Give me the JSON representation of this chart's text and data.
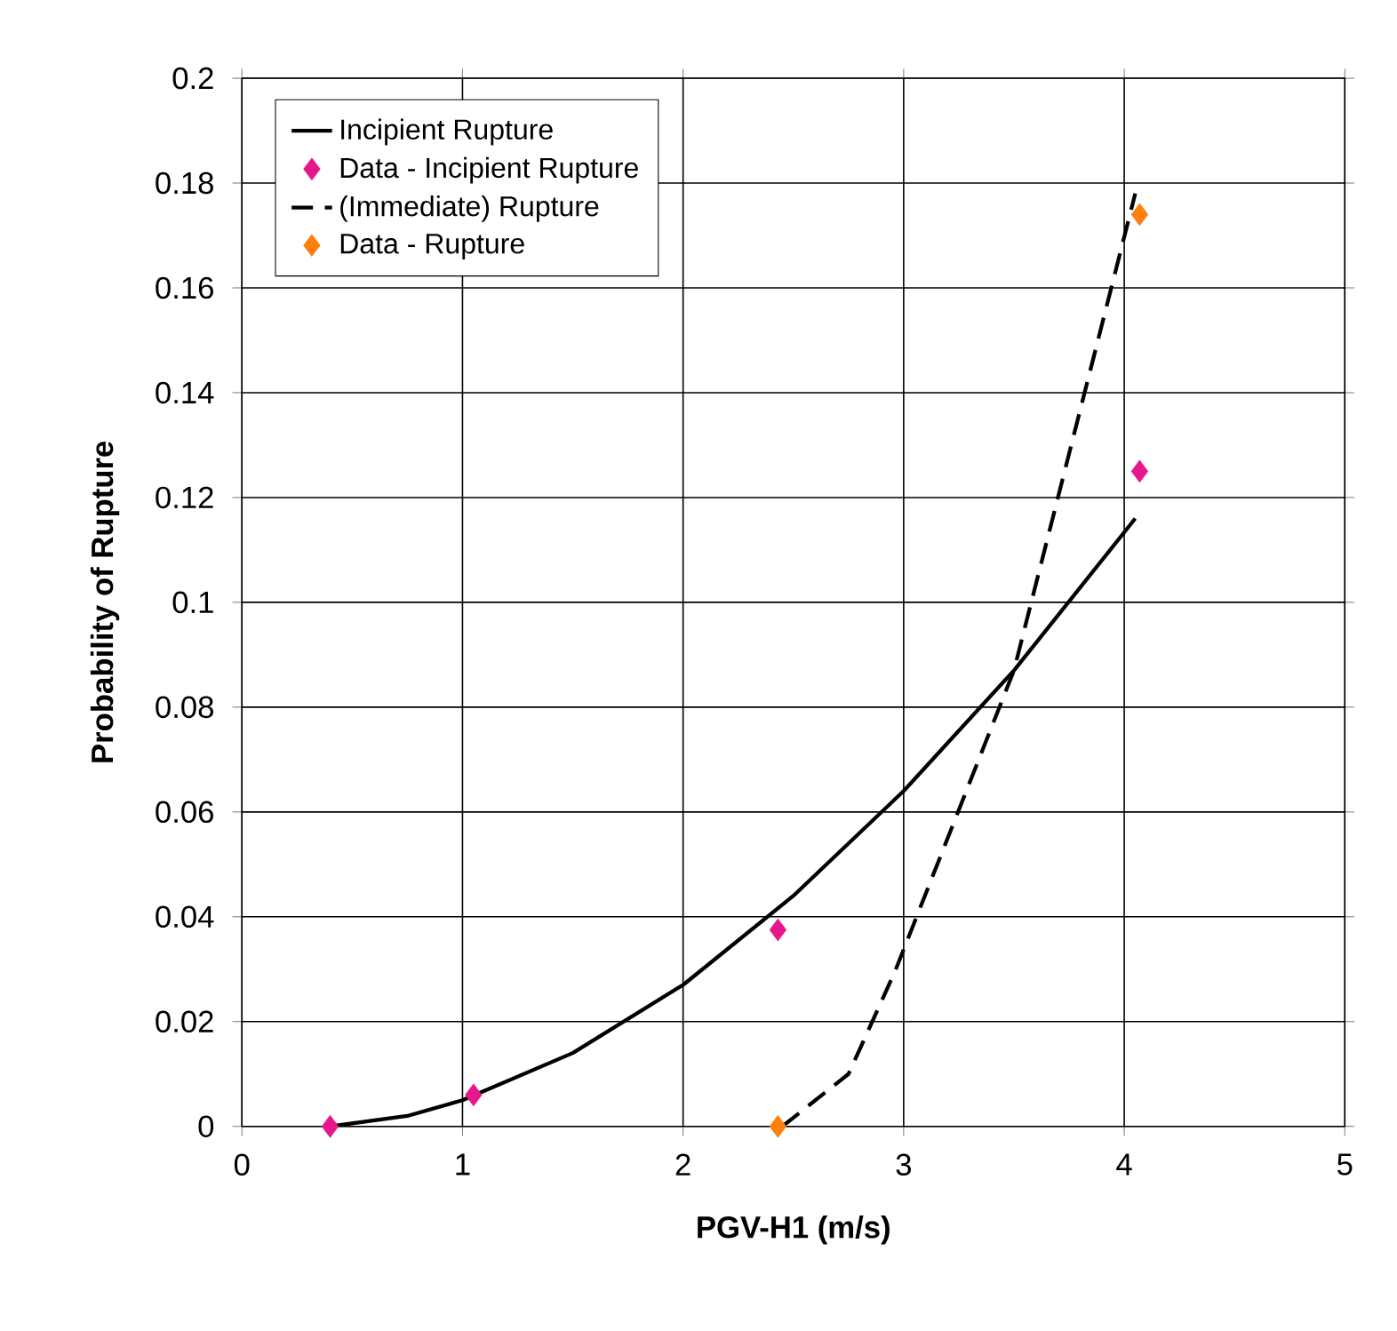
{
  "chart_data": {
    "type": "line",
    "xlabel": "PGV-H1 (m/s)",
    "ylabel": "Probability of Rupture",
    "xlim": [
      0,
      5
    ],
    "xticks": [
      0,
      1,
      2,
      3,
      4,
      5
    ],
    "ylim": [
      0,
      0.2
    ],
    "yticks": [
      0,
      0.02,
      0.04,
      0.06,
      0.08,
      0.1,
      0.12,
      0.14,
      0.16,
      0.18,
      0.2
    ],
    "grid": true,
    "legend": "top left",
    "series": [
      {
        "name": "Incipient Rupture",
        "color": "#000000",
        "line_style": "solid",
        "marker": "none",
        "x": [
          0.4,
          0.75,
          1.0,
          1.5,
          2.0,
          2.5,
          3.0,
          3.5,
          4.05
        ],
        "values": [
          0,
          0.002,
          0.005,
          0.014,
          0.027,
          0.044,
          0.064,
          0.087,
          0.116
        ]
      },
      {
        "name": "Data - Incipient Rupture",
        "type": "scatter",
        "color": "#e8168c",
        "marker": "diamond",
        "x": [
          0.4,
          1.05,
          2.43,
          4.07
        ],
        "values": [
          0,
          0.006,
          0.0375,
          0.125
        ]
      },
      {
        "name": "(Immediate) Rupture",
        "color": "#000000",
        "line_style": "dashed",
        "marker": "none",
        "x": [
          2.45,
          2.75,
          2.96,
          3.5,
          4.05
        ],
        "values": [
          0,
          0.01,
          0.0295,
          0.087,
          0.178
        ]
      },
      {
        "name": "Data - Rupture",
        "type": "scatter",
        "color": "#ff7f0e",
        "marker": "diamond",
        "x": [
          2.43,
          4.07
        ],
        "values": [
          0,
          0.174
        ]
      }
    ]
  }
}
